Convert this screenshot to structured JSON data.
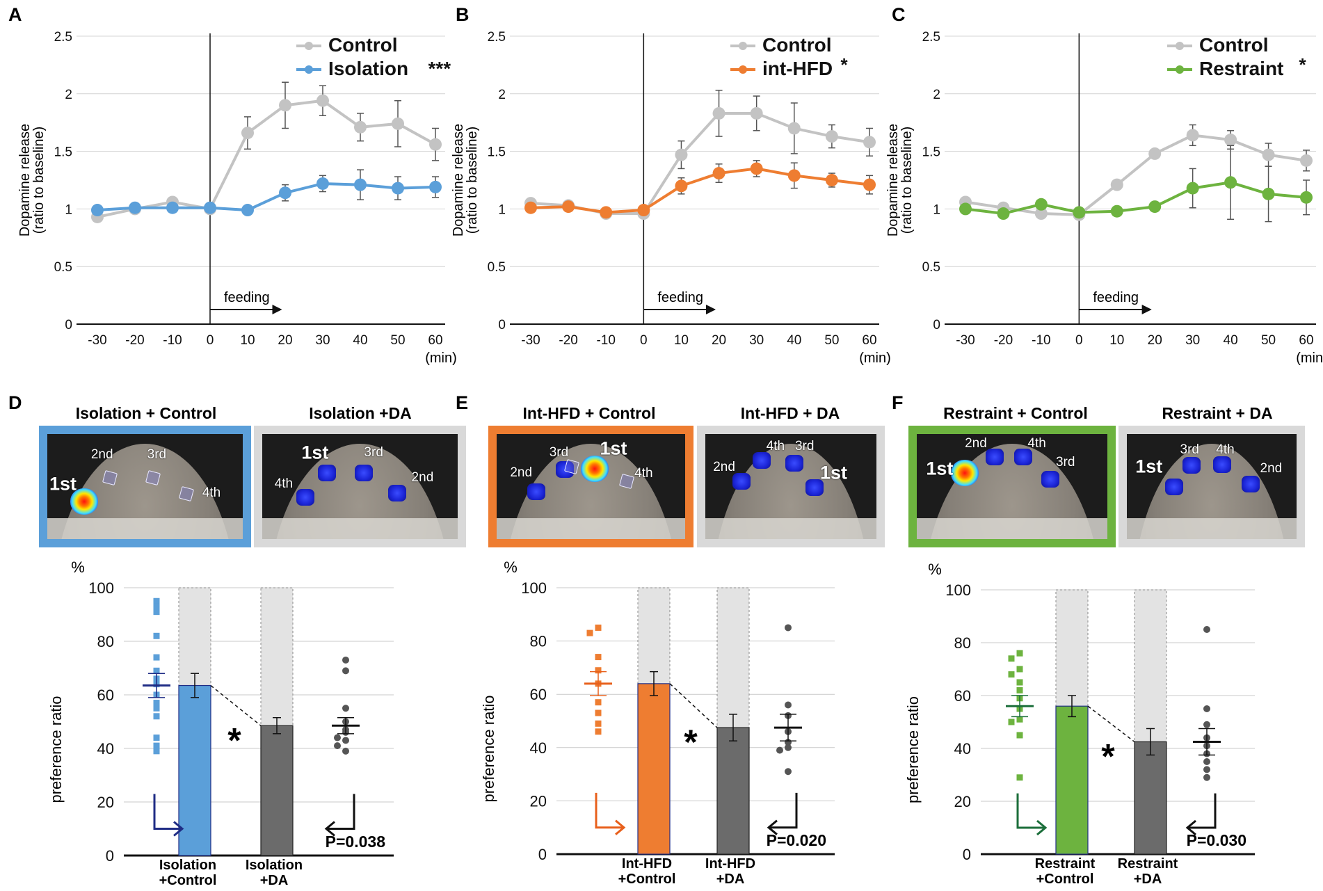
{
  "colors": {
    "control_gray": "#c3c3c3",
    "isolation_blue": "#5b9fd9",
    "hfd_orange": "#ee7d31",
    "restraint_green": "#6db33f",
    "da_gray": "#6b6b6b",
    "arrow_navy": "#1f2c85",
    "arrow_orange": "#e8601c",
    "arrow_green": "#1b6e3a",
    "frame_gray": "#d9d9d9"
  },
  "panel_letters": [
    "A",
    "B",
    "C",
    "D",
    "E",
    "F"
  ],
  "chart_data": [
    {
      "panel": "A",
      "type": "line",
      "ylabel_line1": "Dopamine release",
      "ylabel_line2": "(ratio to baseline)",
      "y_ticks": [
        "0",
        "0.5",
        "1",
        "1.5",
        "2",
        "2.5"
      ],
      "ylim": [
        0,
        2.5
      ],
      "x_ticks": [
        "-30",
        "-20",
        "-10",
        "0",
        "10",
        "20",
        "30",
        "40",
        "50",
        "60"
      ],
      "x_unit": "(min)",
      "annotation": "feeding",
      "legend": [
        {
          "label": "Control",
          "sig": ""
        },
        {
          "label": "Isolation",
          "sig": "***"
        }
      ],
      "x": [
        -30,
        -20,
        -10,
        0,
        10,
        20,
        30,
        40,
        50,
        60
      ],
      "series": [
        {
          "name": "Control",
          "color": "#c3c3c3",
          "values": [
            0.93,
            1.0,
            1.06,
            1.0,
            1.66,
            1.9,
            1.94,
            1.71,
            1.74,
            1.56
          ],
          "errors": [
            0,
            0,
            0,
            0,
            0.14,
            0.2,
            0.13,
            0.12,
            0.2,
            0.14
          ]
        },
        {
          "name": "Isolation",
          "color": "#5b9fd9",
          "values": [
            0.99,
            1.01,
            1.01,
            1.01,
            0.99,
            1.14,
            1.22,
            1.21,
            1.18,
            1.19
          ],
          "errors": [
            0,
            0,
            0,
            0,
            0,
            0.07,
            0.07,
            0.13,
            0.1,
            0.09
          ]
        }
      ]
    },
    {
      "panel": "B",
      "type": "line",
      "ylabel_line1": "Dopamine release",
      "ylabel_line2": "(ratio to baseline)",
      "y_ticks": [
        "0",
        "0.5",
        "1",
        "1.5",
        "2",
        "2.5"
      ],
      "ylim": [
        0,
        2.5
      ],
      "x_ticks": [
        "-30",
        "-20",
        "-10",
        "0",
        "10",
        "20",
        "30",
        "40",
        "50",
        "60"
      ],
      "x_unit": "(min)",
      "annotation": "feeding",
      "legend": [
        {
          "label": "Control",
          "sig": ""
        },
        {
          "label": "int-HFD",
          "sig": "*"
        }
      ],
      "x": [
        -30,
        -20,
        -10,
        0,
        10,
        20,
        30,
        40,
        50,
        60
      ],
      "series": [
        {
          "name": "Control",
          "color": "#c3c3c3",
          "values": [
            1.05,
            1.03,
            0.96,
            0.96,
            1.47,
            1.83,
            1.83,
            1.7,
            1.63,
            1.58
          ],
          "errors": [
            0,
            0,
            0,
            0,
            0.12,
            0.2,
            0.15,
            0.22,
            0.1,
            0.12
          ]
        },
        {
          "name": "int-HFD",
          "color": "#ee7d31",
          "values": [
            1.01,
            1.02,
            0.97,
            0.99,
            1.2,
            1.31,
            1.35,
            1.29,
            1.25,
            1.21
          ],
          "errors": [
            0,
            0,
            0,
            0,
            0.07,
            0.08,
            0.07,
            0.11,
            0.06,
            0.08
          ]
        }
      ]
    },
    {
      "panel": "C",
      "type": "line",
      "ylabel_line1": "Dopamine release",
      "ylabel_line2": "(ratio to baseline)",
      "y_ticks": [
        "0",
        "0.5",
        "1",
        "1.5",
        "2",
        "2.5"
      ],
      "ylim": [
        0,
        2.5
      ],
      "x_ticks": [
        "-30",
        "-20",
        "-10",
        "0",
        "10",
        "20",
        "30",
        "40",
        "50",
        "60"
      ],
      "x_unit": "(min)",
      "annotation": "feeding",
      "legend": [
        {
          "label": "Control",
          "sig": ""
        },
        {
          "label": "Restraint",
          "sig": "*"
        }
      ],
      "x": [
        -30,
        -20,
        -10,
        0,
        10,
        20,
        30,
        40,
        50,
        60
      ],
      "series": [
        {
          "name": "Control",
          "color": "#c3c3c3",
          "values": [
            1.06,
            1.01,
            0.96,
            0.95,
            1.21,
            1.48,
            1.64,
            1.6,
            1.47,
            1.42
          ],
          "errors": [
            0,
            0,
            0,
            0,
            0,
            0,
            0.09,
            0.08,
            0.1,
            0.09
          ]
        },
        {
          "name": "Restraint",
          "color": "#6db33f",
          "values": [
            1.0,
            0.96,
            1.04,
            0.97,
            0.98,
            1.02,
            1.18,
            1.23,
            1.13,
            1.1
          ],
          "errors": [
            0,
            0,
            0,
            0,
            0,
            0,
            0.17,
            0.32,
            0.24,
            0.15
          ]
        }
      ]
    },
    {
      "panel": "D",
      "type": "bar",
      "y_unit": "%",
      "ylabel": "preference ratio",
      "y_ticks": [
        "0",
        "20",
        "40",
        "60",
        "80",
        "100"
      ],
      "ylim": [
        0,
        100
      ],
      "categories": [
        [
          "Isolation",
          "+Control"
        ],
        [
          "Isolation",
          "+DA"
        ]
      ],
      "values": [
        63.5,
        48.5
      ],
      "errors": [
        4.5,
        3.0
      ],
      "bar_colors": [
        "#5b9fd9",
        "#6b6b6b"
      ],
      "scatter_left": [
        95,
        93,
        91,
        82,
        74,
        69,
        66,
        64,
        60,
        57,
        55,
        52,
        44,
        41,
        39
      ],
      "scatter_right": [
        73,
        69,
        55,
        50,
        47,
        46,
        44,
        43,
        41,
        39
      ],
      "scatter_left_mean": 63.5,
      "scatter_left_sem": 4.5,
      "scatter_right_mean": 48.5,
      "scatter_right_sem": 3.0,
      "sig_marker": "*",
      "p_value": "P=0.038"
    },
    {
      "panel": "E",
      "type": "bar",
      "y_unit": "%",
      "ylabel": "preference ratio",
      "y_ticks": [
        "0",
        "20",
        "40",
        "60",
        "80",
        "100"
      ],
      "ylim": [
        0,
        100
      ],
      "categories": [
        [
          "Int-HFD",
          "+Control"
        ],
        [
          "Int-HFD",
          "+DA"
        ]
      ],
      "values": [
        64,
        47.5
      ],
      "errors": [
        4.5,
        5.0
      ],
      "bar_colors": [
        "#ee7d31",
        "#6b6b6b"
      ],
      "scatter_left": [
        85,
        83,
        74,
        69,
        64,
        57,
        53,
        49,
        46
      ],
      "scatter_right": [
        85,
        56,
        52,
        46,
        42,
        40,
        39,
        31
      ],
      "scatter_left_mean": 64,
      "scatter_left_sem": 4.5,
      "scatter_right_mean": 47.5,
      "scatter_right_sem": 5.0,
      "sig_marker": "*",
      "p_value": "P=0.020"
    },
    {
      "panel": "F",
      "type": "bar",
      "y_unit": "%",
      "ylabel": "preference ratio",
      "y_ticks": [
        "0",
        "20",
        "40",
        "60",
        "80",
        "100"
      ],
      "ylim": [
        0,
        100
      ],
      "categories": [
        [
          "Restraint",
          "+Control"
        ],
        [
          "Restraint",
          "+DA"
        ]
      ],
      "values": [
        56,
        42.5
      ],
      "errors": [
        4.0,
        5.0
      ],
      "bar_colors": [
        "#6db33f",
        "#6b6b6b"
      ],
      "scatter_left": [
        76,
        74,
        70,
        68,
        65,
        62,
        59,
        55,
        51,
        50,
        45,
        29
      ],
      "scatter_right": [
        85,
        55,
        49,
        44,
        41,
        38,
        35,
        32,
        29
      ],
      "scatter_left_mean": 56,
      "scatter_left_sem": 4.0,
      "scatter_right_mean": 42.5,
      "scatter_right_sem": 5.0,
      "sig_marker": "*",
      "p_value": "P=0.030"
    }
  ],
  "arenas": {
    "D": {
      "left_title": "Isolation + Control",
      "right_title": "Isolation +DA",
      "left_labels": [
        "2nd",
        "3rd",
        "1st",
        "4th"
      ],
      "right_labels": [
        "1st",
        "3rd",
        "4th",
        "2nd"
      ]
    },
    "E": {
      "left_title": "Int-HFD + Control",
      "right_title": "Int-HFD + DA",
      "left_labels": [
        "3rd",
        "1st",
        "2nd",
        "4th"
      ],
      "right_labels": [
        "4th",
        "3rd",
        "2nd",
        "1st"
      ]
    },
    "F": {
      "left_title": "Restraint + Control",
      "right_title": "Restraint + DA",
      "left_labels": [
        "2nd",
        "4th",
        "1st",
        "3rd"
      ],
      "right_labels": [
        "3rd",
        "4th",
        "1st",
        "2nd"
      ]
    }
  }
}
